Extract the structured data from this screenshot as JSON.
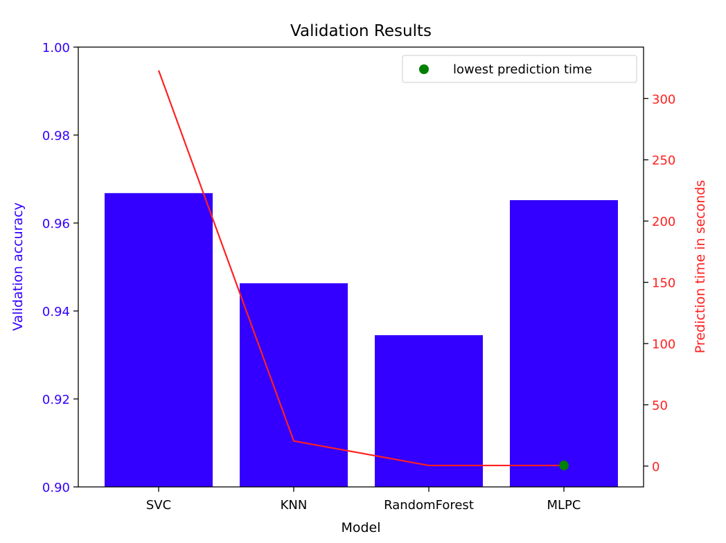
{
  "chart_data": {
    "type": "bar",
    "title": "Validation Results",
    "xlabel": "Model",
    "categories": [
      "SVC",
      "KNN",
      "RandomForest",
      "MLPC"
    ],
    "accuracy": {
      "ylabel": "Validation accuracy",
      "values": [
        0.9668,
        0.9463,
        0.9345,
        0.9652
      ],
      "ylim": [
        0.9,
        1.0
      ],
      "ticks": [
        0.9,
        0.92,
        0.94,
        0.96,
        0.98,
        1.0
      ],
      "tick_labels": [
        "0.90",
        "0.92",
        "0.94",
        "0.96",
        "0.98",
        "1.00"
      ],
      "color": "#3300ff"
    },
    "prediction_time": {
      "ylabel": "Prediction time in seconds",
      "values": [
        323,
        20.5,
        0.5,
        0.5
      ],
      "ylim": [
        -17,
        342
      ],
      "ticks": [
        0,
        50,
        100,
        150,
        200,
        250,
        300
      ],
      "tick_labels": [
        "0",
        "50",
        "100",
        "150",
        "200",
        "250",
        "300"
      ],
      "color": "#ff2020"
    },
    "highlight": {
      "label": "lowest prediction time",
      "category": "MLPC",
      "value": 0.5,
      "color": "#008000"
    },
    "legend_position": "top-right",
    "grid": false
  }
}
